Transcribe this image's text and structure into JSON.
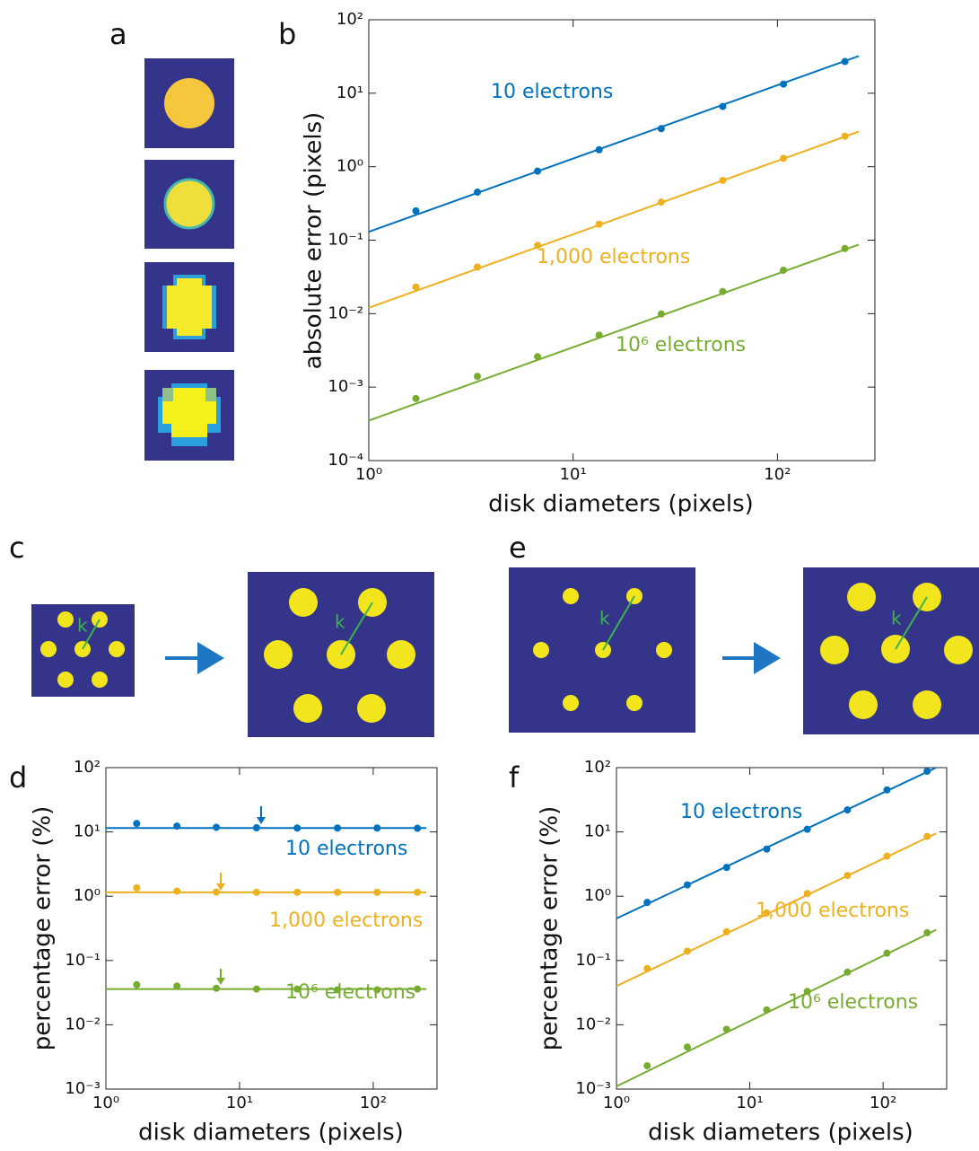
{
  "panel_labels": [
    "a",
    "b",
    "c",
    "d",
    "e",
    "f"
  ],
  "diagram_labels": [
    "k",
    "k",
    "k",
    "k"
  ],
  "chart_data": [
    {
      "type": "line",
      "xlog": true,
      "ylog": true,
      "x_label": "disk diameters (pixels)",
      "y_label": "absolute error (pixels)",
      "xlim": [
        1,
        300
      ],
      "ylim": [
        0.0001,
        100
      ],
      "xticks": [
        {
          "value": 1,
          "label": "10⁰"
        },
        {
          "value": 10,
          "label": "10¹"
        },
        {
          "value": 100,
          "label": "10²"
        }
      ],
      "yticks": [
        {
          "value": 0.0001,
          "label": "10⁻⁴"
        },
        {
          "value": 0.001,
          "label": "10⁻³"
        },
        {
          "value": 0.01,
          "label": "10⁻²"
        },
        {
          "value": 0.1,
          "label": "10⁻¹"
        },
        {
          "value": 1,
          "label": "10⁰"
        },
        {
          "value": 10,
          "label": "10¹"
        },
        {
          "value": 100,
          "label": "10²"
        }
      ],
      "x": [
        1.7,
        3.4,
        6.7,
        13.4,
        27,
        54,
        107,
        214
      ],
      "fit_x": [
        1,
        250
      ],
      "series": [
        {
          "name": "10 electrons",
          "color": "#0072BD",
          "values": [
            0.25,
            0.45,
            0.87,
            1.7,
            3.3,
            6.6,
            13.3,
            27
          ],
          "fit_values": [
            0.13,
            32
          ]
        },
        {
          "name": "1,000 electrons",
          "color": "#EDB120",
          "values": [
            0.023,
            0.043,
            0.085,
            0.165,
            0.33,
            0.65,
            1.3,
            2.6
          ],
          "fit_values": [
            0.012,
            3
          ]
        },
        {
          "name": "10⁶ electrons",
          "color": "#77AC30",
          "values": [
            0.0007,
            0.0014,
            0.0026,
            0.0051,
            0.0099,
            0.02,
            0.039,
            0.077
          ],
          "fit_values": [
            0.00035,
            0.087
          ]
        }
      ]
    },
    {
      "type": "line",
      "xlog": true,
      "ylog": true,
      "x_label": "disk diameters (pixels)",
      "y_label": "percentage error (%)",
      "xlim": [
        1,
        300
      ],
      "ylim": [
        0.001,
        100
      ],
      "xticks": [
        {
          "value": 1,
          "label": "10⁰"
        },
        {
          "value": 10,
          "label": "10¹"
        },
        {
          "value": 100,
          "label": "10²"
        }
      ],
      "yticks": [
        {
          "value": 0.001,
          "label": "10⁻³"
        },
        {
          "value": 0.01,
          "label": "10⁻²"
        },
        {
          "value": 0.1,
          "label": "10⁻¹"
        },
        {
          "value": 1,
          "label": "10⁰"
        },
        {
          "value": 10,
          "label": "10¹"
        },
        {
          "value": 100,
          "label": "10²"
        }
      ],
      "x": [
        1.7,
        3.4,
        6.7,
        13.4,
        27,
        54,
        107,
        214
      ],
      "fit_x": [
        1,
        250
      ],
      "series": [
        {
          "name": "10 electrons",
          "color": "#0072BD",
          "values": [
            13.5,
            12.3,
            11.8,
            11.6,
            11.5,
            11.5,
            11.5,
            11.4
          ],
          "fit_values": [
            11.5,
            11.5
          ]
        },
        {
          "name": "1,000 electrons",
          "color": "#EDB120",
          "values": [
            1.35,
            1.2,
            1.16,
            1.15,
            1.15,
            1.15,
            1.15,
            1.15
          ],
          "fit_values": [
            1.15,
            1.15
          ]
        },
        {
          "name": "10⁶ electrons",
          "color": "#77AC30",
          "values": [
            0.042,
            0.04,
            0.037,
            0.036,
            0.036,
            0.035,
            0.035,
            0.036
          ],
          "fit_values": [
            0.036,
            0.036
          ]
        }
      ]
    },
    {
      "type": "line",
      "xlog": true,
      "ylog": true,
      "x_label": "disk diameters (pixels)",
      "y_label": "percentage error (%)",
      "xlim": [
        1,
        300
      ],
      "ylim": [
        0.001,
        100
      ],
      "xticks": [
        {
          "value": 1,
          "label": "10⁰"
        },
        {
          "value": 10,
          "label": "10¹"
        },
        {
          "value": 100,
          "label": "10²"
        }
      ],
      "yticks": [
        {
          "value": 0.001,
          "label": "10⁻³"
        },
        {
          "value": 0.01,
          "label": "10⁻²"
        },
        {
          "value": 0.1,
          "label": "10⁻¹"
        },
        {
          "value": 1,
          "label": "10⁰"
        },
        {
          "value": 10,
          "label": "10¹"
        },
        {
          "value": 100,
          "label": "10²"
        }
      ],
      "x": [
        1.7,
        3.4,
        6.7,
        13.4,
        27,
        54,
        107,
        214
      ],
      "fit_x": [
        1,
        250
      ],
      "series": [
        {
          "name": "10 electrons",
          "color": "#0072BD",
          "values": [
            0.8,
            1.5,
            2.8,
            5.4,
            11,
            22,
            45,
            88
          ],
          "fit_values": [
            0.45,
            100
          ]
        },
        {
          "name": "1,000 electrons",
          "color": "#EDB120",
          "values": [
            0.075,
            0.14,
            0.28,
            0.55,
            1.1,
            2.1,
            4.2,
            8.5
          ],
          "fit_values": [
            0.04,
            9.5
          ]
        },
        {
          "name": "10⁶ electrons",
          "color": "#77AC30",
          "values": [
            0.0023,
            0.0045,
            0.0085,
            0.017,
            0.033,
            0.066,
            0.13,
            0.27
          ],
          "fit_values": [
            0.0011,
            0.3
          ]
        }
      ]
    }
  ]
}
